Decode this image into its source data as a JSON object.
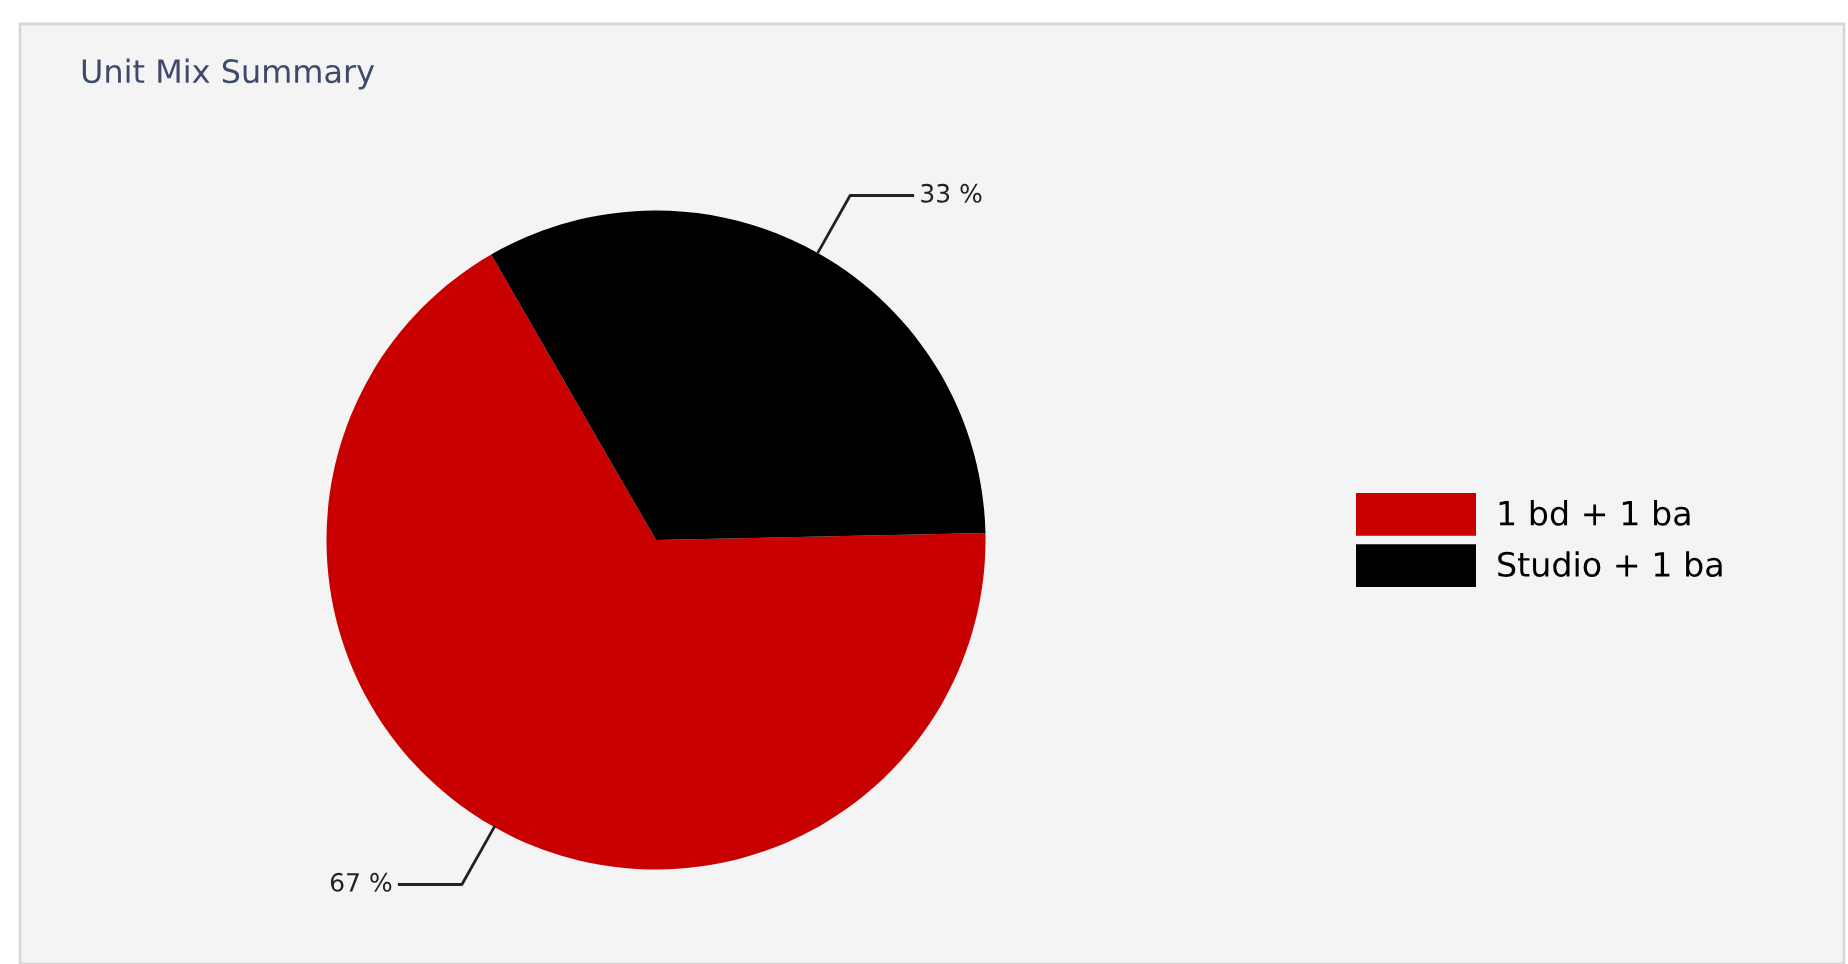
{
  "chart_data": {
    "type": "pie",
    "title": "Unit Mix Summary",
    "categories": [
      "1 bd + 1 ba",
      "Studio + 1 ba"
    ],
    "values": [
      67,
      33
    ],
    "colors": [
      "#c80000",
      "#000000"
    ],
    "value_labels": [
      "67 %",
      "33 %"
    ],
    "legend": "right"
  }
}
